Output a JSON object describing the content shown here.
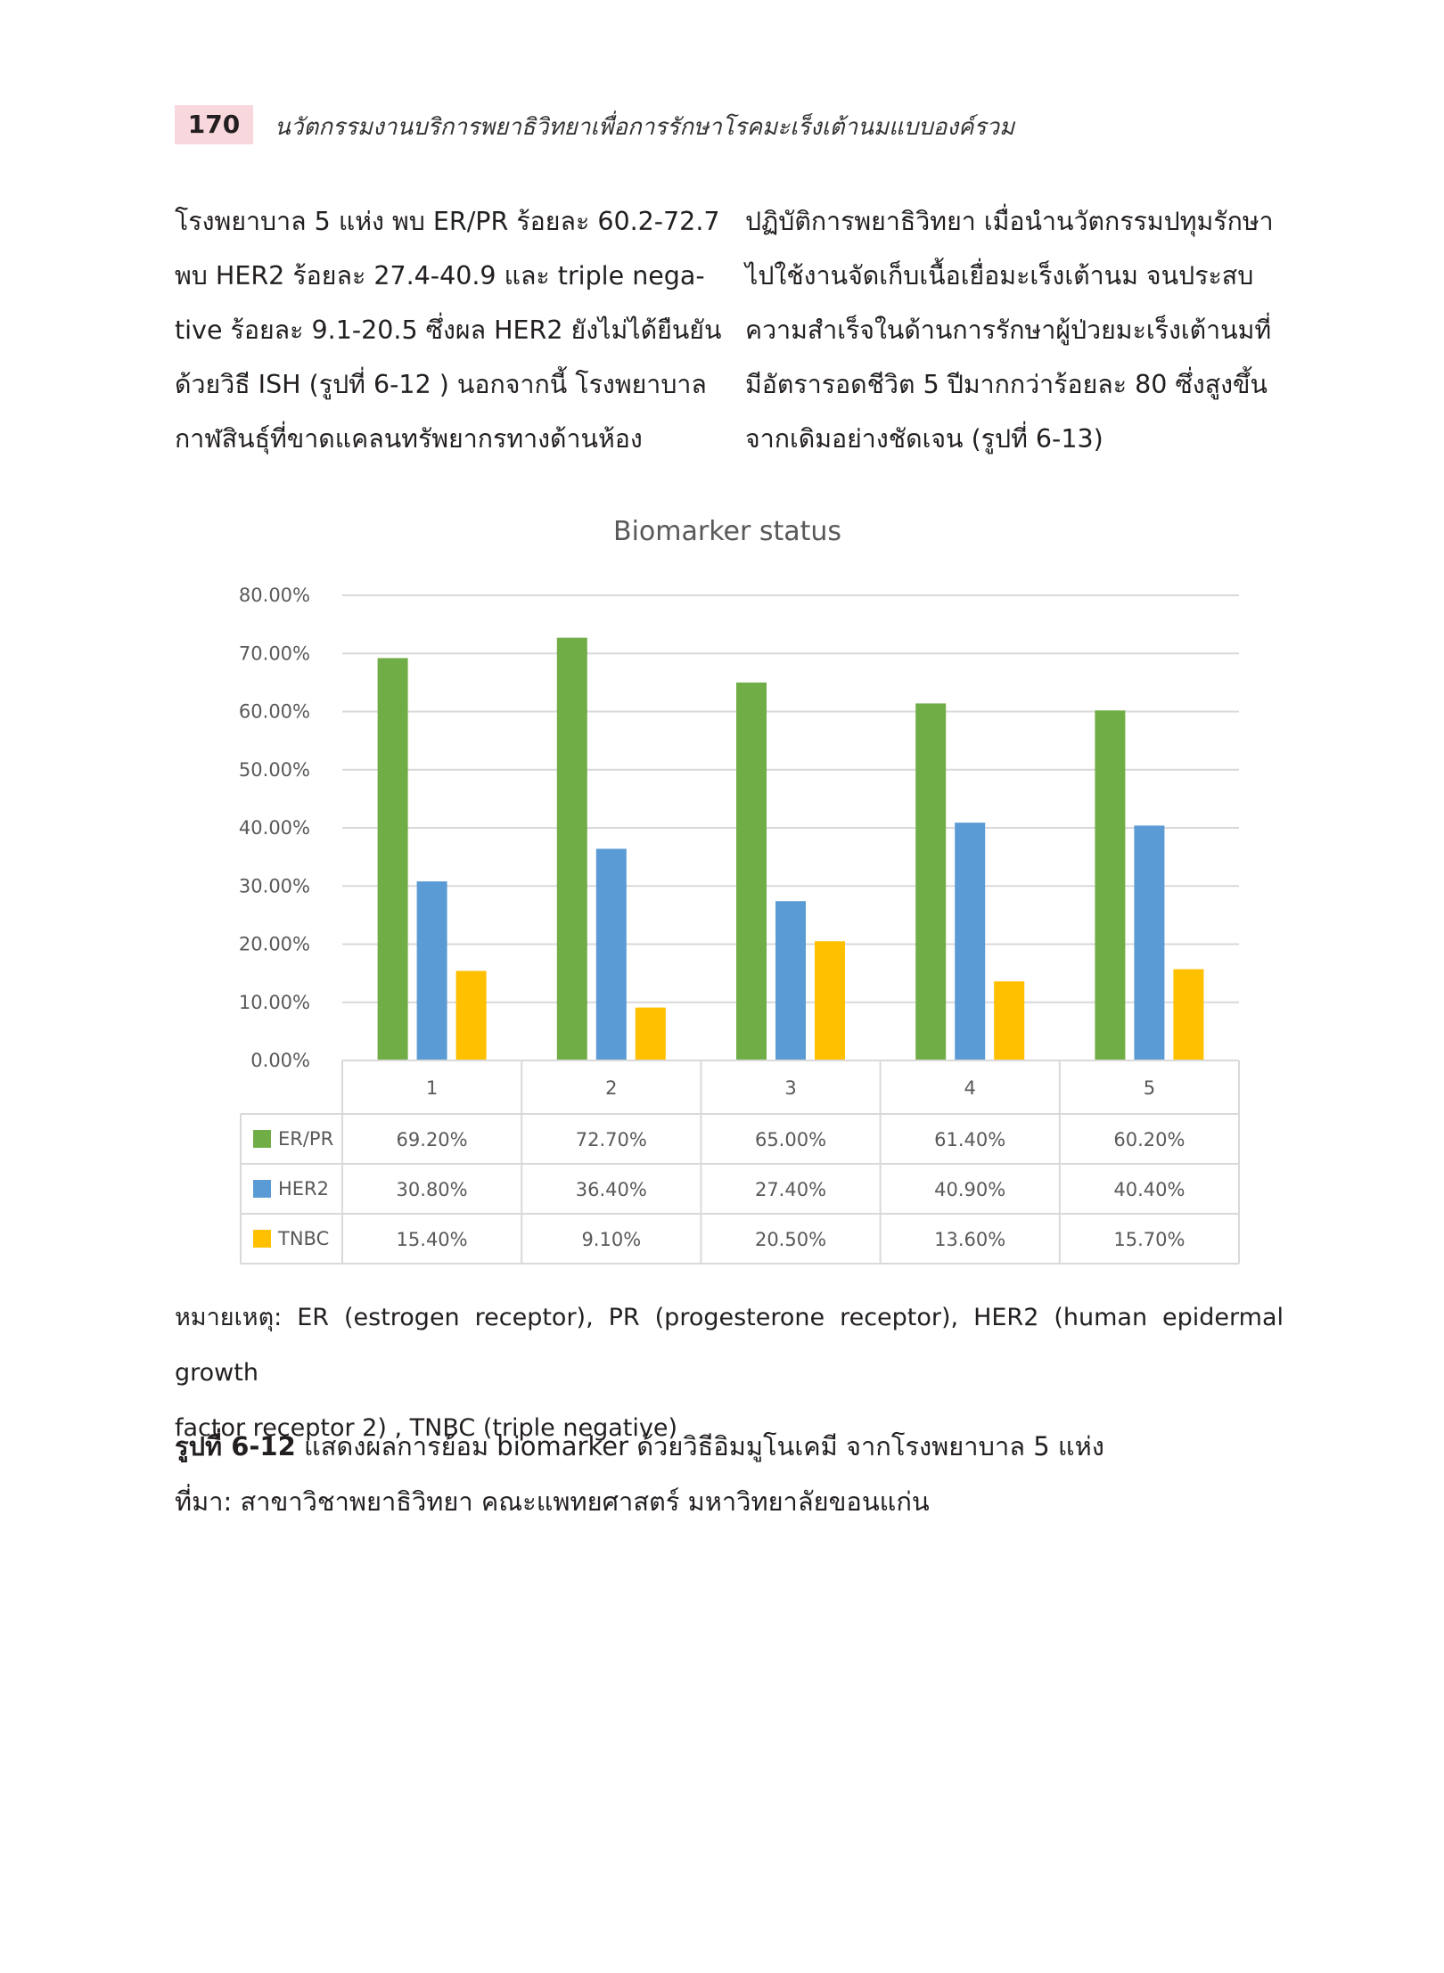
{
  "header": {
    "page_number": "170",
    "running_title": "นวัตกรรมงานบริการพยาธิวิทยาเพื่อการรักษาโรคมะเร็งเต้านมแบบองค์รวม"
  },
  "body_text": {
    "left_lines": [
      "โรงพยาบาล 5 แห่ง พบ ER/PR ร้อยละ 60.2-72.7",
      "พบ HER2 ร้อยละ 27.4-40.9 และ triple nega-",
      "tive ร้อยละ 9.1-20.5 ซึ่งผล HER2 ยังไม่ได้ยืนยัน",
      "ด้วยวิธี ISH (รูปที่ 6-12 ) นอกจากนี้ โรงพยาบาล",
      "กาฬสินธุ์ที่ขาดแคลนทรัพยากรทางด้านห้อง"
    ],
    "right_lines": [
      "ปฏิบัติการพยาธิวิทยา เมื่อนำนวัตกรรมปทุมรักษา",
      "ไปใช้งานจัดเก็บเนื้อเยื่อมะเร็งเต้านม  จนประสบ",
      "ความสำเร็จในด้านการรักษาผู้ป่วยมะเร็งเต้านมที่",
      "มีอัตรารอดชีวิต 5 ปีมากกว่าร้อยละ 80 ซึ่งสูงขึ้น",
      "จากเดิมอย่างชัดเจน (รูปที่ 6-13)"
    ]
  },
  "chart_data": {
    "type": "bar",
    "title": "Biomarker status",
    "categories": [
      "1",
      "2",
      "3",
      "4",
      "5"
    ],
    "series": [
      {
        "name": "ER/PR",
        "color": "#70ad47",
        "values": [
          69.2,
          72.7,
          65.0,
          61.4,
          60.2
        ],
        "labels": [
          "69.20%",
          "72.70%",
          "65.00%",
          "61.40%",
          "60.20%"
        ]
      },
      {
        "name": "HER2",
        "color": "#5b9bd5",
        "values": [
          30.8,
          36.4,
          27.4,
          40.9,
          40.4
        ],
        "labels": [
          "30.80%",
          "36.40%",
          "27.40%",
          "40.90%",
          "40.40%"
        ]
      },
      {
        "name": "TNBC",
        "color": "#ffc000",
        "values": [
          15.4,
          9.1,
          20.5,
          13.6,
          15.7
        ],
        "labels": [
          "15.40%",
          "9.10%",
          "20.50%",
          "13.60%",
          "15.70%"
        ]
      }
    ],
    "y_ticks": [
      "0.00%",
      "10.00%",
      "20.00%",
      "30.00%",
      "40.00%",
      "50.00%",
      "60.00%",
      "70.00%",
      "80.00%"
    ],
    "ylim": [
      0,
      80
    ],
    "grid": true,
    "legend": "data table below chart"
  },
  "note": {
    "line1": "หมายเหตุ: ER (estrogen receptor), PR (progesterone receptor), HER2 (human epidermal growth",
    "line2": "factor receptor 2) , TNBC (triple negative)"
  },
  "caption": {
    "label": "รูปที่ 6-12",
    "text": " แสดงผลการย้อม biomarker ด้วยวิธีอิมมูโนเคมี จากโรงพยาบาล 5 แห่ง",
    "source": "ที่มา: สาขาวิชาพยาธิวิทยา คณะแพทยศาสตร์ มหาวิทยาลัยขอนแก่น"
  }
}
